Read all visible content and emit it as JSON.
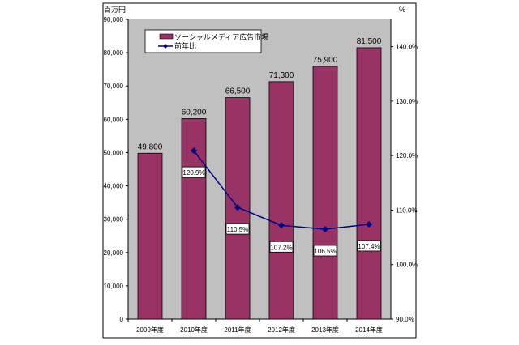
{
  "chart_data": {
    "type": "bar",
    "categories": [
      "2009年度",
      "2010年度",
      "2011年度",
      "2012年度",
      "2013年度",
      "2014年度"
    ],
    "left_axis": {
      "unit_label": "百万円",
      "ylim": [
        0,
        90000
      ],
      "ticks": [
        0,
        10000,
        20000,
        30000,
        40000,
        50000,
        60000,
        70000,
        80000,
        90000
      ]
    },
    "right_axis": {
      "unit_label": "%",
      "ylim": [
        90,
        145
      ],
      "ticks": [
        90,
        100,
        110,
        120,
        130,
        140
      ]
    },
    "series": [
      {
        "name": "ソーシャルメディア広告市場",
        "type": "bar",
        "axis": "left",
        "color": "#993366",
        "values": [
          49800,
          60200,
          66500,
          71300,
          75900,
          81500
        ],
        "labels": [
          "49,800",
          "60,200",
          "66,500",
          "71,300",
          "75,900",
          "81,500"
        ]
      },
      {
        "name": "前年比",
        "type": "line",
        "axis": "right",
        "color": "#000080",
        "values": [
          null,
          120.9,
          110.5,
          107.2,
          106.5,
          107.4
        ],
        "labels": [
          null,
          "120.9%",
          "110.5%",
          "107.2%",
          "106.5%",
          "107.4%"
        ]
      }
    ],
    "plot_background": "#c0c0c0",
    "grid": false,
    "legend_placement": "top-left"
  }
}
